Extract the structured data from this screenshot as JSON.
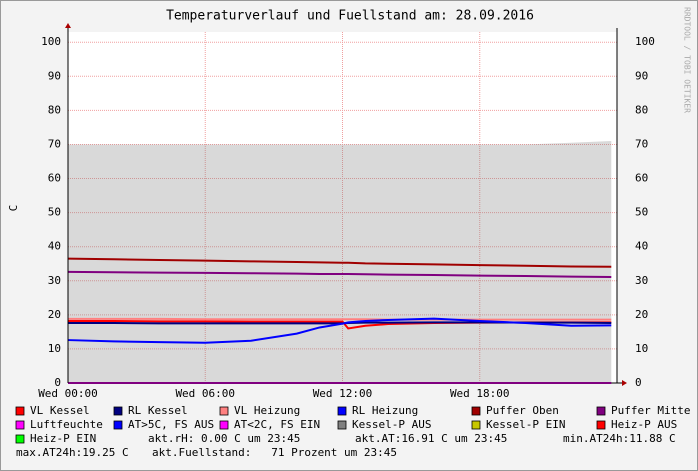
{
  "chart_data": {
    "type": "line",
    "title": "Temperaturverlauf und Fuellstand am: 28.09.2016",
    "y_label": "C",
    "watermark": "RRDTOOL / TOBI OETIKER",
    "xlim": [
      0,
      24
    ],
    "ylim": [
      0,
      103
    ],
    "xticks": [
      {
        "value": 0,
        "label": "Wed 00:00"
      },
      {
        "value": 6,
        "label": "Wed 06:00"
      },
      {
        "value": 12,
        "label": "Wed 12:00"
      },
      {
        "value": 18,
        "label": "Wed 18:00"
      }
    ],
    "yticks": [
      0,
      10,
      20,
      30,
      40,
      50,
      60,
      70,
      80,
      90,
      100
    ],
    "grid": true,
    "x": [
      0,
      2,
      4,
      6,
      8,
      10,
      11,
      12,
      12.25,
      13,
      14,
      16,
      18,
      20,
      22,
      23.75
    ],
    "series": [
      {
        "name": "VL Kessel",
        "color": "#ff0000",
        "values": [
          18.2,
          18.2,
          18.1,
          18.1,
          18,
          18,
          18,
          18,
          16,
          16.8,
          17.3,
          17.6,
          17.7,
          17.8,
          17.8,
          17.8
        ]
      },
      {
        "name": "RL Kessel",
        "color": "#000080",
        "values": [
          17.6,
          17.6,
          17.5,
          17.5,
          17.5,
          17.5,
          17.5,
          17.5,
          17.6,
          17.7,
          17.7,
          17.8,
          17.8,
          17.7,
          17.7,
          17.6
        ]
      },
      {
        "name": "VL Heizung",
        "color": "#ff8080",
        "values": [
          18.8,
          18.8,
          18.8,
          18.7,
          18.7,
          18.7,
          18.7,
          18.7,
          18.7,
          18.7,
          18.6,
          18.6,
          18.6,
          18.6,
          18.6,
          18.6
        ]
      },
      {
        "name": "RL Heizung",
        "color": "#0000ff",
        "values": [
          12.6,
          12.2,
          12,
          11.8,
          12.4,
          14.5,
          16.3,
          17.4,
          17.8,
          18.2,
          18.5,
          18.9,
          18.2,
          17.6,
          16.8,
          16.9
        ]
      },
      {
        "name": "Puffer Oben",
        "color": "#a00000",
        "values": [
          36.5,
          36.3,
          36.1,
          35.9,
          35.7,
          35.5,
          35.4,
          35.3,
          35.3,
          35.1,
          35,
          34.8,
          34.6,
          34.4,
          34.2,
          34.1
        ]
      },
      {
        "name": "Puffer Mitte",
        "color": "#800080",
        "values": [
          32.6,
          32.5,
          32.4,
          32.3,
          32.2,
          32.1,
          32,
          32,
          32,
          31.9,
          31.8,
          31.7,
          31.5,
          31.4,
          31.2,
          31.1
        ]
      },
      {
        "name": "Luftfeuchte",
        "color": "#ff00ff",
        "values": [
          0,
          0,
          0,
          0,
          0,
          0,
          0,
          0,
          0,
          0,
          0,
          0,
          0,
          0,
          0,
          0
        ]
      },
      {
        "name": "AT>5C, FS AUS",
        "color": "#0000ff",
        "values": [
          null,
          null,
          null,
          null,
          null,
          null,
          null,
          null,
          null,
          null,
          null,
          null,
          null,
          null,
          null,
          null
        ]
      },
      {
        "name": "AT<2C, FS EIN",
        "color": "#ff00ff",
        "values": [
          null,
          null,
          null,
          null,
          null,
          null,
          null,
          null,
          null,
          null,
          null,
          null,
          null,
          null,
          null,
          null
        ]
      },
      {
        "name": "Kessel-P AUS",
        "color": "#808080",
        "area": true,
        "values": [
          70,
          70,
          70,
          70,
          70,
          70,
          70,
          70,
          70,
          70,
          70,
          70,
          70,
          70,
          70.5,
          71
        ]
      },
      {
        "name": "Kessel-P EIN",
        "color": "#c8c800",
        "values": [
          null,
          null,
          null,
          null,
          null,
          null,
          null,
          null,
          null,
          null,
          null,
          null,
          null,
          null,
          null,
          null
        ]
      },
      {
        "name": "Heiz-P AUS",
        "color": "#ff0000",
        "values": [
          null,
          null,
          null,
          null,
          null,
          null,
          null,
          null,
          null,
          null,
          null,
          null,
          null,
          null,
          null,
          null
        ]
      },
      {
        "name": "Heiz-P EIN",
        "color": "#00ff00",
        "values": [
          null,
          null,
          null,
          null,
          null,
          null,
          null,
          null,
          null,
          null,
          null,
          null,
          null,
          null,
          null,
          null
        ]
      }
    ],
    "annotations": [
      "akt.rH: 0.00 C um 23:45",
      "akt.AT:16.91 C um 23:45",
      "min.AT24h:11.88 C",
      "max.AT24h:19.25 C",
      "akt.Fuellstand:   71 Prozent um 23:45"
    ]
  }
}
